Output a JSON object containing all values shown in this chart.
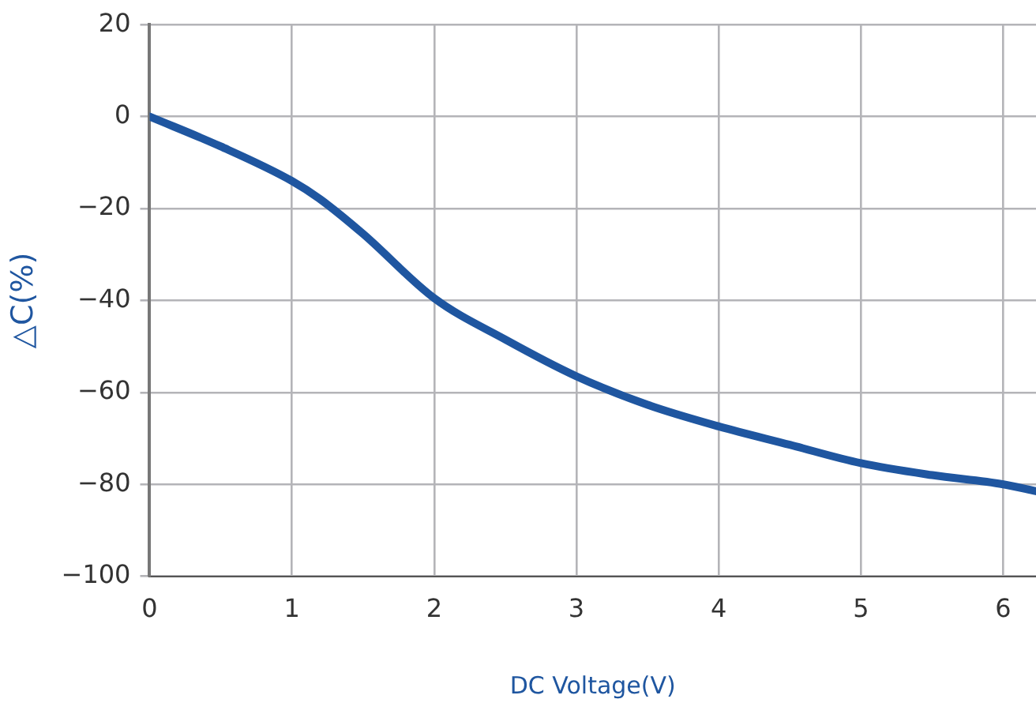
{
  "chart_data": {
    "type": "line",
    "xlabel": "DC Voltage(V)",
    "ylabel": "△C(%)",
    "series": [
      {
        "color": "#1f56a0",
        "x": [
          0,
          0.5,
          1,
          1.2,
          1.5,
          2,
          2.5,
          3,
          3.5,
          4,
          4.5,
          5,
          5.5,
          6,
          6.23
        ],
        "values": [
          0,
          -6.5,
          -14,
          -18,
          -25.5,
          -39.5,
          -48.5,
          -56.5,
          -62.7,
          -67.4,
          -71.4,
          -75.4,
          -78,
          -80,
          -81.5
        ]
      }
    ],
    "xlim": [
      0,
      6.23
    ],
    "ylim": [
      -100,
      20
    ],
    "xticks": [
      0,
      1,
      2,
      3,
      4,
      5,
      6
    ],
    "yticks": [
      -100,
      -80,
      -60,
      -40,
      -20,
      0,
      20
    ],
    "grid": true,
    "legend": false,
    "marker": "none",
    "line_style": "solid"
  }
}
